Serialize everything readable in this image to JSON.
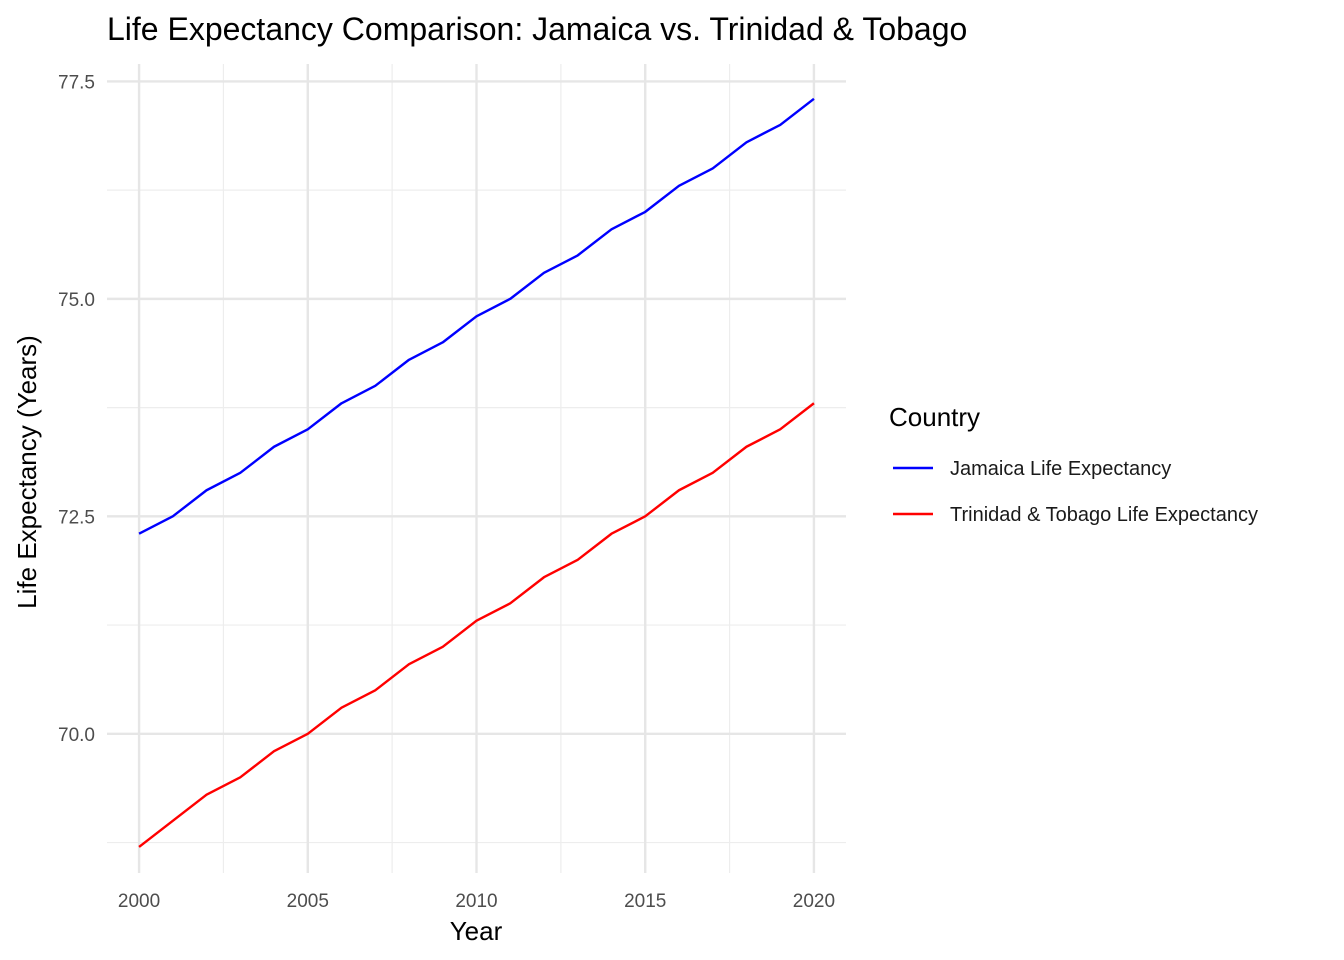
{
  "chart_data": {
    "type": "line",
    "title": "Life Expectancy Comparison: Jamaica vs. Trinidad & Tobago",
    "xlabel": "Year",
    "ylabel": "Life Expectancy (Years)",
    "x": [
      2000,
      2001,
      2002,
      2003,
      2004,
      2005,
      2006,
      2007,
      2008,
      2009,
      2010,
      2011,
      2012,
      2013,
      2014,
      2015,
      2016,
      2017,
      2018,
      2019,
      2020
    ],
    "xlim": [
      1999.05,
      2020.95
    ],
    "ylim": [
      68.4,
      77.7
    ],
    "x_ticks": [
      2000,
      2005,
      2010,
      2015,
      2020
    ],
    "x_tick_labels": [
      "2000",
      "2005",
      "2010",
      "2015",
      "2020"
    ],
    "y_ticks": [
      70,
      72.5,
      75,
      77.5
    ],
    "y_tick_labels": [
      "70.0",
      "72.5",
      "75.0",
      "77.5"
    ],
    "grid": true,
    "legend": {
      "title": "Country",
      "position": "right"
    },
    "series": [
      {
        "name": "Jamaica Life Expectancy",
        "color": "#0000ff",
        "values": [
          72.3,
          72.5,
          72.8,
          73.0,
          73.3,
          73.5,
          73.8,
          74.0,
          74.3,
          74.5,
          74.8,
          75.0,
          75.3,
          75.5,
          75.8,
          76.0,
          76.3,
          76.5,
          76.8,
          77.0,
          77.3
        ]
      },
      {
        "name": "Trinidad & Tobago Life Expectancy",
        "color": "#ff0000",
        "values": [
          68.7,
          69.0,
          69.3,
          69.5,
          69.8,
          70.0,
          70.3,
          70.5,
          70.8,
          71.0,
          71.3,
          71.5,
          71.8,
          72.0,
          72.3,
          72.5,
          72.8,
          73.0,
          73.3,
          73.5,
          73.8
        ]
      }
    ]
  }
}
